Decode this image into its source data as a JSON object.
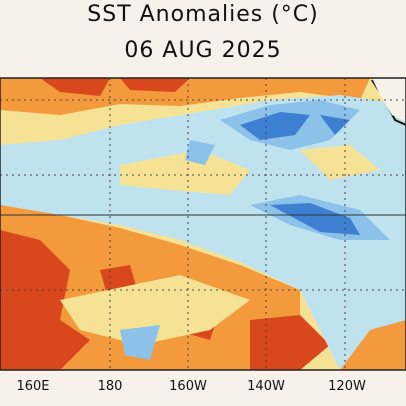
{
  "header": {
    "title": "SST Anomalies (°C)",
    "date": "06 AUG 2025"
  },
  "map": {
    "lon_labels": [
      "160E",
      "180",
      "160W",
      "140W",
      "120W"
    ]
  }
}
